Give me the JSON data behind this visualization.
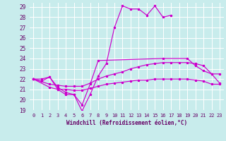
{
  "title": "",
  "xlabel": "Windchill (Refroidissement éolien,°C)",
  "ylabel": "",
  "bg_color": "#c8ecec",
  "grid_color": "#ffffff",
  "line_color": "#cc00cc",
  "xlim": [
    -0.5,
    23.5
  ],
  "ylim": [
    19,
    29.4
  ],
  "xticks": [
    0,
    1,
    2,
    3,
    4,
    5,
    6,
    7,
    8,
    9,
    10,
    11,
    12,
    13,
    14,
    15,
    16,
    17,
    18,
    19,
    20,
    21,
    22,
    23
  ],
  "yticks": [
    19,
    20,
    21,
    22,
    23,
    24,
    25,
    26,
    27,
    28,
    29
  ],
  "line1_x": [
    0,
    1,
    2,
    3,
    4,
    5,
    6,
    7,
    8,
    9,
    10,
    11,
    12,
    13,
    14,
    15,
    16,
    17
  ],
  "line1_y": [
    22,
    22,
    22.2,
    21,
    20.5,
    20.5,
    18.9,
    20.5,
    22.3,
    23.5,
    27,
    29.1,
    28.8,
    28.8,
    28.2,
    29.1,
    28,
    28.2
  ],
  "line2_x": [
    0,
    1,
    2,
    3,
    4,
    5,
    6,
    7,
    8,
    16,
    19,
    20,
    21,
    22,
    23
  ],
  "line2_y": [
    22,
    21.8,
    22.2,
    21.2,
    20.7,
    20.5,
    19.5,
    21.5,
    23.8,
    24.0,
    24.0,
    23.3,
    22.8,
    22.5,
    22.5
  ],
  "line3_x": [
    0,
    2,
    3,
    4,
    5,
    6,
    7,
    8,
    9,
    10,
    11,
    12,
    13,
    14,
    15,
    16,
    17,
    18,
    19,
    20,
    21,
    22,
    23
  ],
  "line3_y": [
    22.0,
    21.5,
    21.4,
    21.3,
    21.3,
    21.3,
    21.6,
    22.0,
    22.3,
    22.5,
    22.7,
    23.0,
    23.2,
    23.4,
    23.5,
    23.6,
    23.6,
    23.6,
    23.6,
    23.5,
    23.3,
    22.5,
    21.6
  ],
  "line4_x": [
    0,
    2,
    3,
    4,
    5,
    6,
    7,
    8,
    9,
    10,
    11,
    12,
    13,
    14,
    15,
    16,
    17,
    18,
    19,
    20,
    21,
    22,
    23
  ],
  "line4_y": [
    22.0,
    21.2,
    21.0,
    21.0,
    20.9,
    20.9,
    21.1,
    21.3,
    21.5,
    21.6,
    21.7,
    21.8,
    21.9,
    21.9,
    22.0,
    22.0,
    22.0,
    22.0,
    22.0,
    21.9,
    21.8,
    21.5,
    21.5
  ]
}
